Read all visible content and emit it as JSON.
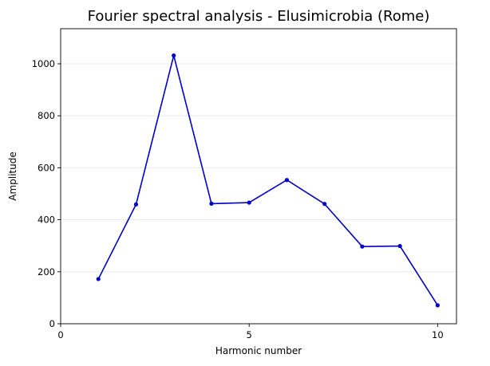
{
  "chart_data": {
    "type": "line",
    "title": "Fourier spectral analysis - Elusimicrobia (Rome)",
    "xlabel": "Harmonic number",
    "ylabel": "Amplitude",
    "xlim": [
      0,
      10.5
    ],
    "ylim": [
      0,
      1135
    ],
    "xticks": [
      0,
      5,
      10
    ],
    "yticks": [
      0,
      200,
      400,
      600,
      800,
      1000
    ],
    "grid": "y-axis only",
    "series": [
      {
        "color": "#0000c8",
        "marker": "circle",
        "x": [
          1,
          2,
          3,
          4,
          5,
          6,
          7,
          8,
          9,
          10
        ],
        "y": [
          172,
          459,
          1032,
          462,
          466,
          553,
          461,
          297,
          299,
          71
        ]
      }
    ]
  }
}
